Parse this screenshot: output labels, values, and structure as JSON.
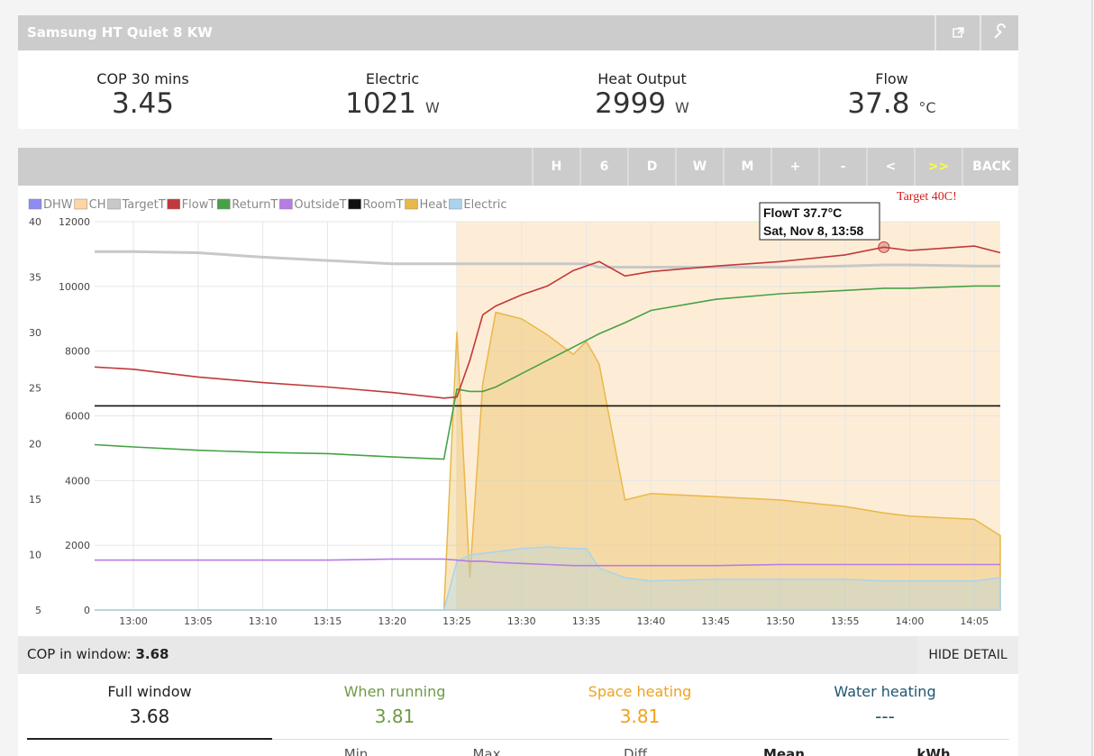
{
  "header": {
    "title": "Samsung HT Quiet 8 KW"
  },
  "stats": [
    {
      "label": "COP 30 mins",
      "value": 3.45
    },
    {
      "label": "Electric",
      "value": 1021,
      "unit": "W"
    },
    {
      "label": "Heat Output",
      "value": 2999,
      "unit": "W"
    },
    {
      "label": "Flow",
      "value": 37.8,
      "unit": "°C"
    }
  ],
  "toolbar": {
    "buttons": [
      "H",
      "6",
      "D",
      "W",
      "M",
      "+",
      "-",
      "<",
      ">>",
      "BACK"
    ]
  },
  "chart_data": {
    "type": "line",
    "annotation": "Target 40C!",
    "tooltip": {
      "title": "FlowT 37.7°C",
      "subtitle": "Sat, Nov 8, 13:58"
    },
    "grid": true,
    "x": [
      "12:57",
      "13:00",
      "13:05",
      "13:10",
      "13:15",
      "13:20",
      "13:24",
      "13:25",
      "13:26",
      "13:27",
      "13:28",
      "13:30",
      "13:32",
      "13:34",
      "13:35",
      "13:36",
      "13:38",
      "13:40",
      "13:45",
      "13:50",
      "13:55",
      "13:58",
      "14:00",
      "14:05",
      "14:07"
    ],
    "xlim": [
      "12:57",
      "14:07"
    ],
    "xticks": [
      "13:00",
      "13:05",
      "13:10",
      "13:15",
      "13:20",
      "13:25",
      "13:30",
      "13:35",
      "13:40",
      "13:45",
      "13:50",
      "13:55",
      "14:00",
      "14:05"
    ],
    "ylim": [
      5,
      40
    ],
    "yticks": [
      5,
      10,
      15,
      20,
      25,
      30,
      35,
      40
    ],
    "y2lim": [
      0,
      12000
    ],
    "y2ticks": [
      0,
      2000,
      4000,
      6000,
      8000,
      10000,
      12000
    ],
    "series": [
      {
        "name": "DHW",
        "color": "#8c8cf2",
        "spans": []
      },
      {
        "name": "CH",
        "color": "#fdd6a4",
        "spans": [
          [
            "13:25",
            "14:07"
          ]
        ]
      },
      {
        "name": "TargetT",
        "color": "#c8c8c8",
        "values": [
          37.3,
          37.3,
          37.2,
          36.8,
          36.5,
          36.2,
          36.2,
          36.2,
          36.2,
          36.2,
          36.2,
          36.2,
          36.2,
          36.2,
          36.2,
          35.9,
          35.9,
          35.9,
          35.9,
          35.9,
          36.0,
          36.1,
          36.1,
          36.0,
          36.0
        ]
      },
      {
        "name": "FlowT",
        "color": "#c0393b",
        "values": [
          26.9,
          26.7,
          26.0,
          25.5,
          25.1,
          24.6,
          24.1,
          24.2,
          27.5,
          31.6,
          32.4,
          33.4,
          34.2,
          35.6,
          36.0,
          36.4,
          35.1,
          35.5,
          36.0,
          36.4,
          37.0,
          37.7,
          37.4,
          37.8,
          37.2
        ]
      },
      {
        "name": "ReturnT",
        "color": "#46a246",
        "values": [
          19.9,
          19.7,
          19.4,
          19.2,
          19.1,
          18.8,
          18.6,
          24.9,
          24.7,
          24.7,
          25.1,
          26.3,
          27.5,
          28.7,
          29.3,
          29.9,
          30.9,
          32.0,
          33.0,
          33.5,
          33.8,
          34.0,
          34.0,
          34.2,
          34.2
        ]
      },
      {
        "name": "OutsideT",
        "color": "#b87be6",
        "values": [
          9.5,
          9.5,
          9.5,
          9.5,
          9.5,
          9.6,
          9.6,
          9.5,
          9.4,
          9.4,
          9.3,
          9.2,
          9.1,
          9.0,
          9.0,
          9.0,
          9.0,
          9.0,
          9.0,
          9.1,
          9.1,
          9.1,
          9.1,
          9.1,
          9.1
        ]
      },
      {
        "name": "RoomT",
        "color": "#111111",
        "values": [
          23.4,
          23.4,
          23.4,
          23.4,
          23.4,
          23.4,
          23.4,
          23.4,
          23.4,
          23.4,
          23.4,
          23.4,
          23.4,
          23.4,
          23.4,
          23.4,
          23.4,
          23.4,
          23.4,
          23.4,
          23.4,
          23.4,
          23.4,
          23.4,
          23.4
        ]
      },
      {
        "name": "Heat",
        "color": "#e8b84a",
        "axis": "y2",
        "area": true,
        "values": [
          0,
          0,
          0,
          0,
          0,
          0,
          0,
          8600,
          1000,
          7000,
          9200,
          9000,
          8500,
          7900,
          8300,
          7600,
          3400,
          3600,
          3500,
          3400,
          3200,
          3000,
          2900,
          2800,
          2300
        ]
      },
      {
        "name": "Electric",
        "color": "#a9d3ef",
        "axis": "y2",
        "area": true,
        "values": [
          0,
          0,
          0,
          0,
          0,
          0,
          0,
          1500,
          1700,
          1750,
          1800,
          1900,
          1950,
          1900,
          1900,
          1300,
          1000,
          900,
          950,
          950,
          950,
          900,
          900,
          900,
          1000
        ]
      }
    ]
  },
  "summary": {
    "label": "COP in window:",
    "value": 3.68,
    "button": "HIDE DETAIL"
  },
  "cop_tabs": [
    {
      "label": "Full window",
      "value": 3.68
    },
    {
      "label": "When running",
      "value": 3.81
    },
    {
      "label": "Space heating",
      "value": 3.81
    },
    {
      "label": "Water heating",
      "value": "---"
    }
  ],
  "table_header": [
    "Min",
    "Max",
    "Diff",
    "Mean",
    "kWh"
  ]
}
